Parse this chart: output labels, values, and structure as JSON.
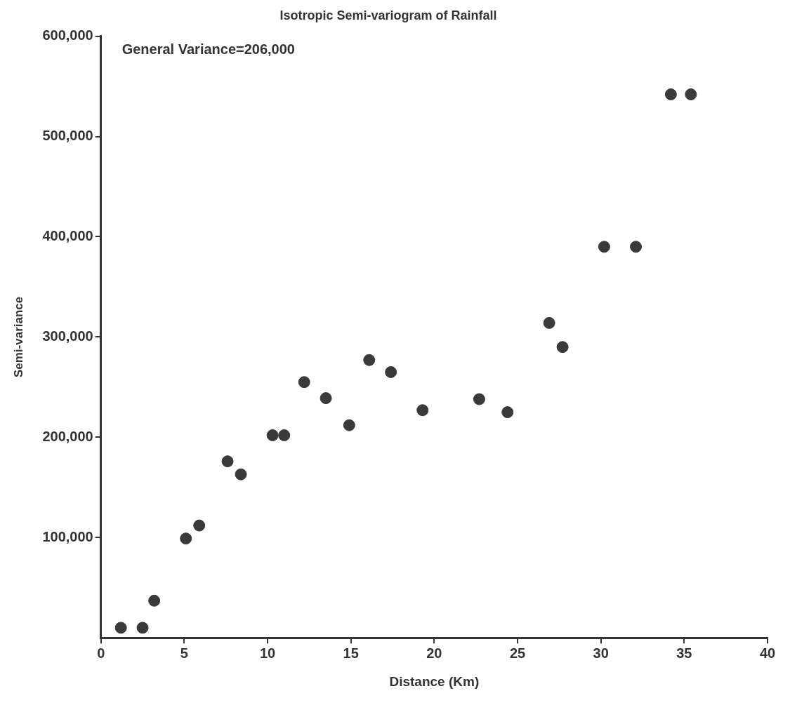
{
  "chart_data": {
    "type": "scatter",
    "title": "Isotropic Semi-variogram of Rainfall",
    "xlabel": "Distance (Km)",
    "ylabel": "Semi-variance",
    "annotations": [
      "General Variance=206,000"
    ],
    "x": [
      1.2,
      2.5,
      3.2,
      5.1,
      5.9,
      7.6,
      8.4,
      10.3,
      11.0,
      12.2,
      13.5,
      14.9,
      16.1,
      17.4,
      19.3,
      22.7,
      24.4,
      26.9,
      27.7,
      30.2,
      32.1,
      34.2,
      35.4
    ],
    "series": [
      {
        "color": "#3a3a3a",
        "values": [
          10000,
          10000,
          37000,
          99000,
          112000,
          176000,
          163000,
          202000,
          202000,
          255000,
          239000,
          212000,
          277000,
          265000,
          227000,
          238000,
          225000,
          314000,
          290000,
          390000,
          390000,
          542000,
          542000
        ]
      }
    ],
    "xlim": [
      0,
      40
    ],
    "xticks": [
      0,
      5,
      10,
      15,
      20,
      25,
      30,
      35,
      40
    ],
    "ylim": [
      0,
      600000
    ],
    "yticks": [
      {
        "value": 100000,
        "label": "100,000"
      },
      {
        "value": 200000,
        "label": "200,000"
      },
      {
        "value": 300000,
        "label": "300,000"
      },
      {
        "value": 400000,
        "label": "400,000"
      },
      {
        "value": 500000,
        "label": "500,000"
      },
      {
        "value": 600000,
        "label": "600,000"
      }
    ],
    "grid": false,
    "legend": false,
    "marker": "circle"
  }
}
